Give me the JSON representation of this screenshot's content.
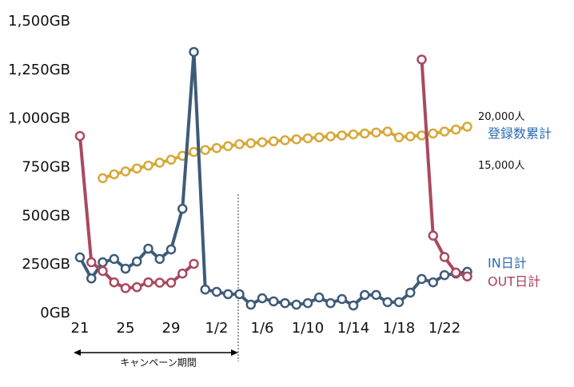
{
  "chart_data": {
    "type": "line",
    "categories": [
      "21",
      null,
      null,
      null,
      "25",
      null,
      null,
      null,
      "29",
      null,
      null,
      null,
      "1/2",
      null,
      null,
      null,
      "1/6",
      null,
      null,
      null,
      "1/10",
      null,
      null,
      null,
      "1/14",
      null,
      null,
      null,
      "1/18",
      null,
      null,
      null,
      "1/22",
      null,
      null
    ],
    "ylim": [
      0,
      1500
    ],
    "yticks": [
      {
        "value": 0,
        "label": "0GB"
      },
      {
        "value": 250,
        "label": "250GB"
      },
      {
        "value": 500,
        "label": "500GB"
      },
      {
        "value": 750,
        "label": "750GB"
      },
      {
        "value": 1000,
        "label": "1,000GB"
      },
      {
        "value": 1250,
        "label": "1,250GB"
      },
      {
        "value": 1500,
        "label": "1,500GB"
      }
    ],
    "y2lim": [
      0,
      30000
    ],
    "y2ticks": [
      {
        "value": 15000,
        "label": "15,000人"
      },
      {
        "value": 20000,
        "label": "20,000人"
      }
    ],
    "grid": false,
    "annotation": "キャンペーン期間",
    "series": [
      {
        "name": "登録数累計",
        "color": "#d6a838",
        "label_color": "#2b6cb3",
        "axis": "y2",
        "values": [
          null,
          null,
          13900,
          14300,
          14600,
          14900,
          15200,
          15500,
          15800,
          16200,
          16600,
          16800,
          17000,
          17200,
          17400,
          17500,
          17600,
          17700,
          17800,
          17900,
          18000,
          18100,
          18200,
          18300,
          18400,
          18500,
          18600,
          18700,
          18100,
          18200,
          18300,
          18500,
          18700,
          18900,
          19200
        ]
      },
      {
        "name": "IN日計",
        "color": "#3e5b79",
        "label_color": "#2b6cb3",
        "values": [
          288,
          180,
          263,
          280,
          230,
          267,
          333,
          280,
          329,
          538,
          1344,
          123,
          111,
          99,
          99,
          45,
          78,
          62,
          53,
          45,
          53,
          82,
          53,
          74,
          41,
          95,
          95,
          58,
          58,
          107,
          177,
          160,
          197,
          205,
          214
        ]
      },
      {
        "name": "OUT日計",
        "color": "#a9495f",
        "label_color": "#b0405c",
        "values": [
          912,
          263,
          218,
          160,
          130,
          135,
          160,
          158,
          158,
          205,
          255,
          null,
          null,
          null,
          null,
          null,
          null,
          null,
          null,
          null,
          null,
          null,
          null,
          null,
          null,
          null,
          null,
          null,
          null,
          null,
          1305,
          400,
          290,
          210,
          190
        ]
      }
    ]
  }
}
